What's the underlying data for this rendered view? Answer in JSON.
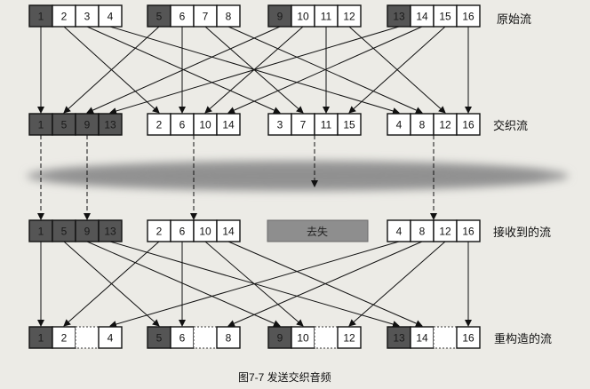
{
  "labels": {
    "original": "原始流",
    "interleaved": "交织流",
    "received": "接收到的流",
    "reconstructed": "重构造的流",
    "lost": "去失",
    "caption": "图7-7   发送交织音频"
  },
  "rows": {
    "original": [
      [
        {
          "n": "1",
          "lost": true
        },
        {
          "n": "2"
        },
        {
          "n": "3"
        },
        {
          "n": "4"
        }
      ],
      [
        {
          "n": "5",
          "lost": true
        },
        {
          "n": "6"
        },
        {
          "n": "7"
        },
        {
          "n": "8"
        }
      ],
      [
        {
          "n": "9",
          "lost": true
        },
        {
          "n": "10"
        },
        {
          "n": "11"
        },
        {
          "n": "12"
        }
      ],
      [
        {
          "n": "13",
          "lost": true
        },
        {
          "n": "14"
        },
        {
          "n": "15"
        },
        {
          "n": "16"
        }
      ]
    ],
    "interleaved": [
      [
        {
          "n": "1",
          "lost": true
        },
        {
          "n": "5",
          "lost": true
        },
        {
          "n": "9",
          "lost": true
        },
        {
          "n": "13",
          "lost": true
        }
      ],
      [
        {
          "n": "2"
        },
        {
          "n": "6"
        },
        {
          "n": "10"
        },
        {
          "n": "14"
        }
      ],
      [
        {
          "n": "3"
        },
        {
          "n": "7"
        },
        {
          "n": "11"
        },
        {
          "n": "15"
        }
      ],
      [
        {
          "n": "4"
        },
        {
          "n": "8"
        },
        {
          "n": "12"
        },
        {
          "n": "16"
        }
      ]
    ],
    "received": [
      [
        {
          "n": "1",
          "lost": true
        },
        {
          "n": "5",
          "lost": true
        },
        {
          "n": "9",
          "lost": true
        },
        {
          "n": "13",
          "lost": true
        }
      ],
      [
        {
          "n": "2"
        },
        {
          "n": "6"
        },
        {
          "n": "10"
        },
        {
          "n": "14"
        }
      ],
      null,
      [
        {
          "n": "4"
        },
        {
          "n": "8"
        },
        {
          "n": "12"
        },
        {
          "n": "16"
        }
      ]
    ],
    "reconstructed": [
      [
        {
          "n": "1",
          "lost": true
        },
        {
          "n": "2"
        },
        {
          "n": ""
        },
        {
          "n": "4"
        }
      ],
      [
        {
          "n": "5",
          "lost": true
        },
        {
          "n": "6"
        },
        {
          "n": ""
        },
        {
          "n": "8"
        }
      ],
      [
        {
          "n": "9",
          "lost": true
        },
        {
          "n": "10"
        },
        {
          "n": ""
        },
        {
          "n": "12"
        }
      ],
      [
        {
          "n": "13",
          "lost": true
        },
        {
          "n": "14"
        },
        {
          "n": ""
        },
        {
          "n": "16"
        }
      ]
    ]
  },
  "colors": {
    "lost_fill": "#555555",
    "cell_fill": "#ffffff",
    "line": "#111111",
    "banner": "#8e8e8e",
    "band": "#9a9a9a"
  }
}
